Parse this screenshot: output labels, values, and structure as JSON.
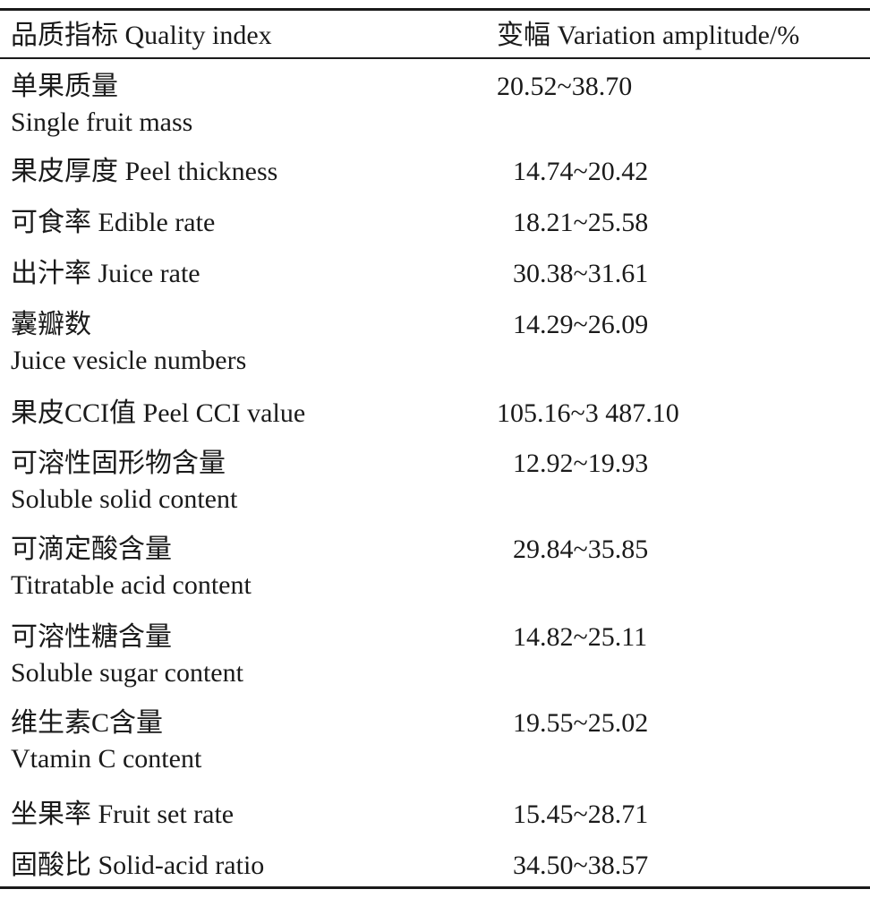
{
  "table": {
    "headers": [
      "品质指标 Quality index",
      "变幅 Variation amplitude/%"
    ],
    "rows": [
      {
        "zh": "单果质量",
        "en": "Single fruit mass",
        "two_line": true,
        "range": "20.52~38.70"
      },
      {
        "zh": "果皮厚度",
        "en": "Peel thickness",
        "two_line": false,
        "range": "14.74~20.42"
      },
      {
        "zh": "可食率",
        "en": "Edible rate",
        "two_line": false,
        "range": "18.21~25.58"
      },
      {
        "zh": "出汁率",
        "en": "Juice rate",
        "two_line": false,
        "range": "30.38~31.61"
      },
      {
        "zh": "囊瓣数",
        "en": "Juice vesicle numbers",
        "two_line": true,
        "range": "14.29~26.09"
      },
      {
        "zh": "果皮CCI值",
        "en": "Peel CCI value",
        "two_line": false,
        "range": "105.16~3 487.10"
      },
      {
        "zh": "可溶性固形物含量",
        "en": "Soluble solid content",
        "two_line": true,
        "range": "12.92~19.93"
      },
      {
        "zh": "可滴定酸含量",
        "en": "Titratable acid content",
        "two_line": true,
        "range": "29.84~35.85"
      },
      {
        "zh": "可溶性糖含量",
        "en": "Soluble sugar content",
        "two_line": true,
        "range": "14.82~25.11"
      },
      {
        "zh": "维生素C含量",
        "en": "Vtamin C content",
        "two_line": true,
        "range": "19.55~25.02"
      },
      {
        "zh": "坐果率",
        "en": "Fruit set rate",
        "two_line": false,
        "range": "15.45~28.71"
      },
      {
        "zh": "固酸比",
        "en": "Solid-acid ratio",
        "two_line": false,
        "range": "34.50~38.57"
      }
    ]
  }
}
